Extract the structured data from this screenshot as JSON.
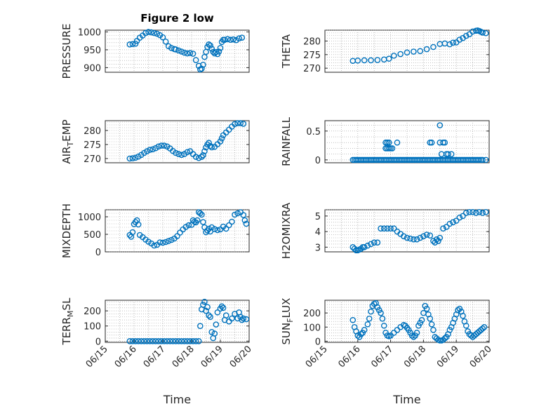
{
  "figure": {
    "title": "Figure 2 low"
  },
  "colors": {
    "marker": "#0072bd",
    "axis": "#262626",
    "grid": "#9a9a9a"
  },
  "chart_data": [
    {
      "id": "pressure",
      "type": "scatter",
      "ylabel": "PRESSURE",
      "xlim": [
        0,
        5
      ],
      "ylim": [
        887,
        1005
      ],
      "yticks": [
        900,
        950,
        1000
      ],
      "ytick_labels": [
        "900",
        "950",
        "1000"
      ],
      "xticks": [],
      "xtick_labels": [],
      "grid": true,
      "title": "Figure 2 low",
      "x": [
        0.85,
        0.95,
        1.05,
        1.1,
        1.2,
        1.3,
        1.4,
        1.5,
        1.6,
        1.7,
        1.8,
        1.9,
        2.0,
        2.1,
        2.2,
        2.3,
        2.4,
        2.45,
        2.55,
        2.65,
        2.75,
        2.85,
        2.95,
        3.05,
        3.15,
        3.25,
        3.3,
        3.35,
        3.4,
        3.45,
        3.5,
        3.55,
        3.6,
        3.65,
        3.7,
        3.75,
        3.8,
        3.85,
        3.9,
        3.95,
        4.0,
        4.05,
        4.1,
        4.15,
        4.25,
        4.35,
        4.45,
        4.55,
        4.65,
        4.75
      ],
      "y": [
        965,
        966,
        967,
        975,
        984,
        990,
        997,
        1000,
        999,
        997,
        995,
        991,
        985,
        973,
        960,
        955,
        952,
        951,
        948,
        945,
        942,
        940,
        941,
        939,
        921,
        905,
        895,
        897,
        908,
        930,
        944,
        958,
        965,
        962,
        953,
        944,
        940,
        944,
        938,
        945,
        955,
        972,
        978,
        978,
        980,
        978,
        979,
        977,
        982,
        984
      ]
    },
    {
      "id": "theta",
      "type": "scatter",
      "ylabel": "THETA",
      "xlim": [
        0,
        5
      ],
      "ylim": [
        268.5,
        284
      ],
      "yticks": [
        270,
        275,
        280
      ],
      "ytick_labels": [
        "270",
        "275",
        "280"
      ],
      "xticks": [],
      "xtick_labels": [],
      "grid": true,
      "x": [
        0.85,
        1.0,
        1.2,
        1.4,
        1.6,
        1.8,
        1.95,
        2.1,
        2.3,
        2.5,
        2.7,
        2.9,
        3.1,
        3.3,
        3.5,
        3.65,
        3.8,
        3.9,
        4.0,
        4.1,
        4.2,
        4.3,
        4.4,
        4.5,
        4.6,
        4.65,
        4.7,
        4.75,
        4.8,
        4.9
      ],
      "y": [
        272.7,
        272.8,
        272.9,
        272.9,
        273.0,
        273.2,
        273.5,
        274.6,
        275.2,
        275.8,
        276.1,
        276.3,
        277.0,
        277.8,
        278.9,
        279.1,
        278.8,
        279.4,
        279.5,
        280.5,
        281.1,
        281.9,
        282.5,
        283.5,
        283.8,
        283.9,
        283.7,
        283.4,
        283.1,
        282.9
      ]
    },
    {
      "id": "air_temp",
      "type": "scatter",
      "ylabel": "AIR_TEMP",
      "xlim": [
        0,
        5
      ],
      "ylim": [
        268.5,
        283.5
      ],
      "yticks": [
        270,
        275,
        280
      ],
      "ytick_labels": [
        "270",
        "275",
        "280"
      ],
      "xticks": [],
      "xtick_labels": [],
      "grid": true,
      "x": [
        0.85,
        0.95,
        1.05,
        1.15,
        1.25,
        1.35,
        1.45,
        1.55,
        1.65,
        1.75,
        1.85,
        1.95,
        2.05,
        2.15,
        2.25,
        2.35,
        2.45,
        2.55,
        2.65,
        2.75,
        2.85,
        2.95,
        3.05,
        3.15,
        3.25,
        3.35,
        3.4,
        3.45,
        3.5,
        3.55,
        3.6,
        3.65,
        3.7,
        3.8,
        3.9,
        4.0,
        4.05,
        4.1,
        4.2,
        4.3,
        4.4,
        4.5,
        4.6,
        4.7,
        4.8
      ],
      "y": [
        270.0,
        270.1,
        270.3,
        270.7,
        271.3,
        272.0,
        272.6,
        273.1,
        273.3,
        273.7,
        274.3,
        274.6,
        274.6,
        274.3,
        273.6,
        272.7,
        272.0,
        271.6,
        271.3,
        271.6,
        272.3,
        272.6,
        271.6,
        270.6,
        270.2,
        270.6,
        271.2,
        272.6,
        274.0,
        275.0,
        275.6,
        274.5,
        274.0,
        274.2,
        275.1,
        276.1,
        277.2,
        278.3,
        279.3,
        280.3,
        281.4,
        282.3,
        282.6,
        282.6,
        282.4
      ]
    },
    {
      "id": "rainfall",
      "type": "scatter",
      "ylabel": "RAINFALL",
      "xlim": [
        0,
        5
      ],
      "ylim": [
        -0.05,
        0.68
      ],
      "yticks": [
        0,
        0.5
      ],
      "ytick_labels": [
        "0",
        "0.5"
      ],
      "xticks": [],
      "xtick_labels": [],
      "grid": true,
      "x": [
        0.85,
        0.9,
        0.95,
        1.0,
        1.05,
        1.1,
        1.15,
        1.2,
        1.25,
        1.3,
        1.35,
        1.4,
        1.45,
        1.5,
        1.55,
        1.6,
        1.65,
        1.7,
        1.75,
        1.8,
        1.85,
        1.9,
        1.95,
        2.0,
        2.05,
        2.1,
        2.15,
        2.2,
        2.25,
        2.3,
        2.35,
        2.4,
        2.45,
        2.5,
        2.55,
        2.6,
        2.65,
        2.7,
        2.75,
        2.8,
        2.85,
        2.9,
        2.95,
        3.0,
        3.05,
        3.1,
        3.15,
        3.2,
        3.25,
        3.3,
        3.35,
        3.4,
        3.45,
        3.5,
        3.55,
        3.6,
        3.65,
        3.7,
        3.75,
        3.8,
        3.85,
        3.9,
        3.95,
        4.0,
        4.05,
        4.1,
        4.15,
        4.2,
        4.25,
        4.3,
        4.35,
        4.4,
        4.45,
        4.5,
        4.55,
        4.6,
        4.65,
        4.7,
        4.75,
        4.8,
        4.9,
        1.85,
        1.9,
        1.95,
        2.0,
        2.05,
        1.85,
        1.9,
        1.95,
        2.2,
        3.2,
        3.25,
        3.5,
        3.6,
        3.65,
        3.5,
        3.55,
        3.7,
        3.75,
        3.85
      ],
      "y": [
        0,
        0,
        0,
        0,
        0,
        0,
        0,
        0,
        0,
        0,
        0,
        0,
        0,
        0,
        0,
        0,
        0,
        0,
        0,
        0,
        0,
        0,
        0,
        0,
        0,
        0,
        0,
        0,
        0,
        0,
        0,
        0,
        0,
        0,
        0,
        0,
        0,
        0,
        0,
        0,
        0,
        0,
        0,
        0,
        0,
        0,
        0,
        0,
        0,
        0,
        0,
        0,
        0,
        0,
        0,
        0,
        0,
        0,
        0,
        0,
        0,
        0,
        0,
        0,
        0,
        0,
        0,
        0,
        0,
        0,
        0,
        0,
        0,
        0,
        0,
        0,
        0,
        0,
        0,
        0,
        0,
        0.2,
        0.2,
        0.2,
        0.2,
        0.2,
        0.3,
        0.3,
        0.3,
        0.3,
        0.3,
        0.3,
        0.3,
        0.3,
        0.3,
        0.6,
        0.1,
        0.1,
        0.1,
        0.1
      ]
    },
    {
      "id": "mixdepth",
      "type": "scatter",
      "ylabel": "MIXDEPTH",
      "xlim": [
        0,
        5
      ],
      "ylim": [
        0,
        1200
      ],
      "yticks": [
        0,
        500,
        1000
      ],
      "ytick_labels": [
        "0",
        "500",
        "1000"
      ],
      "xticks": [],
      "xtick_labels": [],
      "grid": true,
      "x": [
        0.85,
        0.9,
        0.95,
        1.0,
        1.05,
        1.1,
        1.15,
        1.2,
        1.3,
        1.4,
        1.5,
        1.6,
        1.7,
        1.8,
        1.9,
        2.0,
        2.1,
        2.2,
        2.3,
        2.4,
        2.5,
        2.6,
        2.7,
        2.8,
        2.9,
        3.0,
        3.05,
        3.1,
        3.15,
        3.2,
        3.25,
        3.3,
        3.35,
        3.4,
        3.45,
        3.5,
        3.55,
        3.6,
        3.65,
        3.7,
        3.8,
        3.9,
        4.0,
        4.1,
        4.2,
        4.3,
        4.4,
        4.5,
        4.6,
        4.7,
        4.8,
        4.85,
        4.9
      ],
      "y": [
        480,
        430,
        560,
        790,
        850,
        900,
        780,
        480,
        420,
        350,
        290,
        240,
        180,
        200,
        270,
        260,
        280,
        310,
        340,
        380,
        450,
        550,
        640,
        710,
        760,
        770,
        900,
        860,
        840,
        900,
        1130,
        1100,
        1060,
        850,
        700,
        560,
        610,
        660,
        580,
        700,
        650,
        620,
        640,
        720,
        660,
        760,
        860,
        1060,
        1100,
        1130,
        1050,
        900,
        800
      ]
    },
    {
      "id": "h2omixra",
      "type": "scatter",
      "ylabel": "H2OMIXRA",
      "xlim": [
        0,
        5
      ],
      "ylim": [
        2.7,
        5.4
      ],
      "yticks": [
        3,
        4,
        5
      ],
      "ytick_labels": [
        "3",
        "4",
        "5"
      ],
      "xticks": [],
      "xtick_labels": [],
      "grid": true,
      "x": [
        0.85,
        0.9,
        0.95,
        1.0,
        1.05,
        1.1,
        1.15,
        1.2,
        1.3,
        1.4,
        1.5,
        1.6,
        1.7,
        1.8,
        1.9,
        2.0,
        2.1,
        2.2,
        2.3,
        2.4,
        2.5,
        2.6,
        2.7,
        2.8,
        2.9,
        3.0,
        3.1,
        3.2,
        3.3,
        3.35,
        3.4,
        3.45,
        3.5,
        3.6,
        3.7,
        3.8,
        3.9,
        4.0,
        4.1,
        4.2,
        4.3,
        4.4,
        4.5,
        4.6,
        4.7,
        4.8,
        4.9
      ],
      "y": [
        3.0,
        2.9,
        2.8,
        2.8,
        2.85,
        2.9,
        3.0,
        3.0,
        3.1,
        3.2,
        3.3,
        3.3,
        4.2,
        4.2,
        4.2,
        4.2,
        4.2,
        4.0,
        3.85,
        3.7,
        3.6,
        3.55,
        3.5,
        3.5,
        3.6,
        3.7,
        3.8,
        3.75,
        3.4,
        3.3,
        3.5,
        3.4,
        3.6,
        4.2,
        4.3,
        4.5,
        4.6,
        4.7,
        4.9,
        5.0,
        5.2,
        5.25,
        5.25,
        5.2,
        5.25,
        5.2,
        5.25
      ]
    },
    {
      "id": "terr_msl",
      "type": "scatter",
      "ylabel": "TERR_MSL",
      "xlim": [
        0,
        5
      ],
      "ylim": [
        -8,
        270
      ],
      "yticks": [
        0,
        100,
        200
      ],
      "ytick_labels": [
        "0",
        "100",
        "200"
      ],
      "xticks": [
        0,
        1,
        2,
        3,
        4,
        5
      ],
      "xtick_labels": [
        "06/15",
        "06/16",
        "06/17",
        "06/18",
        "06/19",
        "06/20"
      ],
      "xlabel": "Time",
      "grid": true,
      "x": [
        0.85,
        0.95,
        1.05,
        1.15,
        1.25,
        1.35,
        1.45,
        1.55,
        1.65,
        1.75,
        1.85,
        1.95,
        2.05,
        2.15,
        2.25,
        2.35,
        2.45,
        2.55,
        2.65,
        2.75,
        2.85,
        2.95,
        3.05,
        3.15,
        3.25,
        3.3,
        3.35,
        3.4,
        3.45,
        3.5,
        3.55,
        3.6,
        3.65,
        3.7,
        3.75,
        3.8,
        3.85,
        3.9,
        4.0,
        4.05,
        4.1,
        4.15,
        4.2,
        4.3,
        4.4,
        4.5,
        4.6,
        4.65,
        4.7,
        4.75,
        4.8,
        4.9
      ],
      "y": [
        0,
        0,
        0,
        0,
        0,
        0,
        0,
        0,
        0,
        0,
        0,
        0,
        0,
        0,
        0,
        0,
        0,
        0,
        0,
        0,
        0,
        0,
        0,
        0,
        0,
        100,
        210,
        240,
        260,
        200,
        225,
        170,
        160,
        60,
        20,
        50,
        110,
        190,
        215,
        230,
        220,
        140,
        170,
        130,
        150,
        180,
        150,
        190,
        160,
        140,
        150,
        145
      ]
    },
    {
      "id": "sun_flux",
      "type": "scatter",
      "ylabel": "SUN_FLUX",
      "xlim": [
        0,
        5
      ],
      "ylim": [
        -8,
        290
      ],
      "yticks": [
        0,
        100,
        200
      ],
      "ytick_labels": [
        "0",
        "100",
        "200"
      ],
      "xticks": [
        0,
        1,
        2,
        3,
        4,
        5
      ],
      "xtick_labels": [
        "06/15",
        "06/16",
        "06/17",
        "06/18",
        "06/19",
        "06/20"
      ],
      "xlabel": "Time",
      "grid": true,
      "x": [
        0.85,
        0.9,
        0.95,
        1.0,
        1.05,
        1.1,
        1.15,
        1.2,
        1.3,
        1.35,
        1.4,
        1.45,
        1.5,
        1.55,
        1.6,
        1.65,
        1.7,
        1.75,
        1.8,
        1.85,
        1.9,
        1.95,
        2.0,
        2.1,
        2.2,
        2.3,
        2.4,
        2.45,
        2.5,
        2.55,
        2.6,
        2.65,
        2.7,
        2.75,
        2.8,
        2.85,
        2.9,
        2.95,
        3.0,
        3.05,
        3.1,
        3.15,
        3.2,
        3.25,
        3.3,
        3.35,
        3.4,
        3.45,
        3.5,
        3.55,
        3.6,
        3.65,
        3.7,
        3.75,
        3.8,
        3.85,
        3.9,
        3.95,
        4.0,
        4.05,
        4.1,
        4.15,
        4.2,
        4.25,
        4.3,
        4.35,
        4.4,
        4.45,
        4.5,
        4.55,
        4.6,
        4.65,
        4.7,
        4.75,
        4.8,
        4.85
      ],
      "y": [
        150,
        100,
        70,
        40,
        30,
        50,
        60,
        80,
        120,
        160,
        210,
        250,
        265,
        270,
        240,
        220,
        200,
        160,
        110,
        60,
        40,
        35,
        40,
        60,
        80,
        100,
        115,
        110,
        95,
        80,
        60,
        40,
        30,
        40,
        60,
        110,
        130,
        150,
        200,
        250,
        230,
        190,
        160,
        120,
        80,
        30,
        20,
        10,
        5,
        5,
        10,
        20,
        30,
        50,
        80,
        100,
        130,
        160,
        190,
        220,
        230,
        210,
        180,
        140,
        110,
        70,
        50,
        40,
        30,
        40,
        50,
        60,
        70,
        80,
        90,
        100
      ]
    }
  ]
}
